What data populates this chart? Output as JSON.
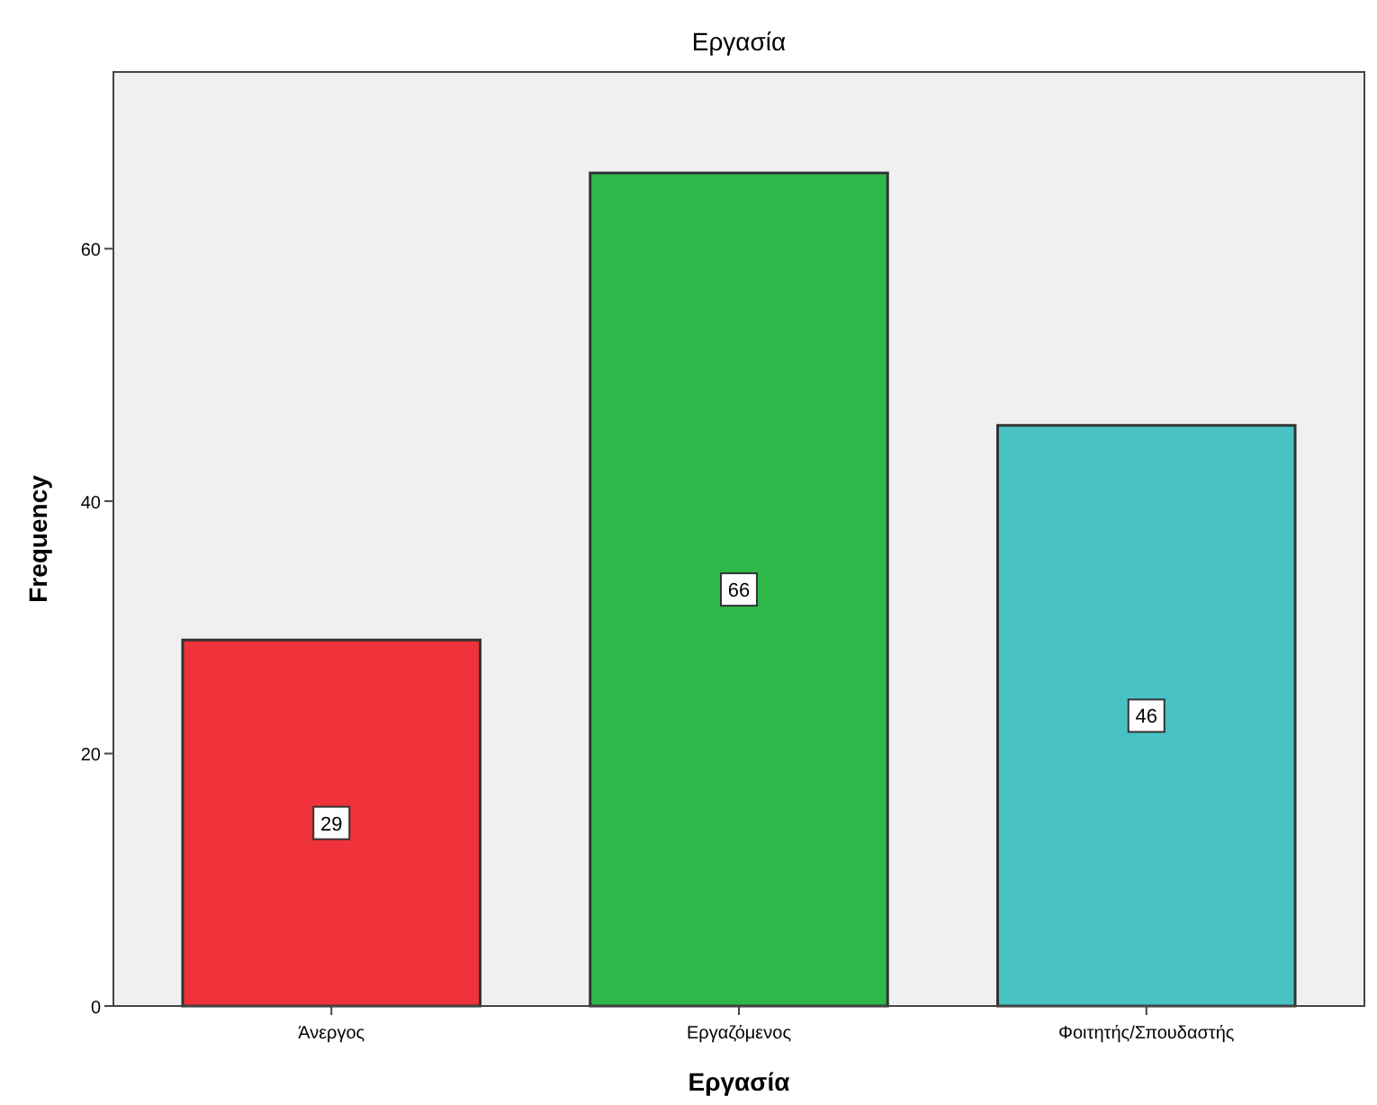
{
  "chart_data": {
    "type": "bar",
    "title": "Εργασία",
    "xlabel": "Εργασία",
    "ylabel": "Frequency",
    "categories": [
      "Άνεργος",
      "Εργαζόμενος",
      "Φοιτητής/Σπουδαστής"
    ],
    "values": [
      29,
      66,
      46
    ],
    "colors": [
      "#f0323a",
      "#2fb84a",
      "#48c2c5"
    ],
    "ylim": [
      0,
      74
    ],
    "yticks": [
      0,
      20,
      40,
      60
    ],
    "grid": false,
    "data_labels": true
  }
}
